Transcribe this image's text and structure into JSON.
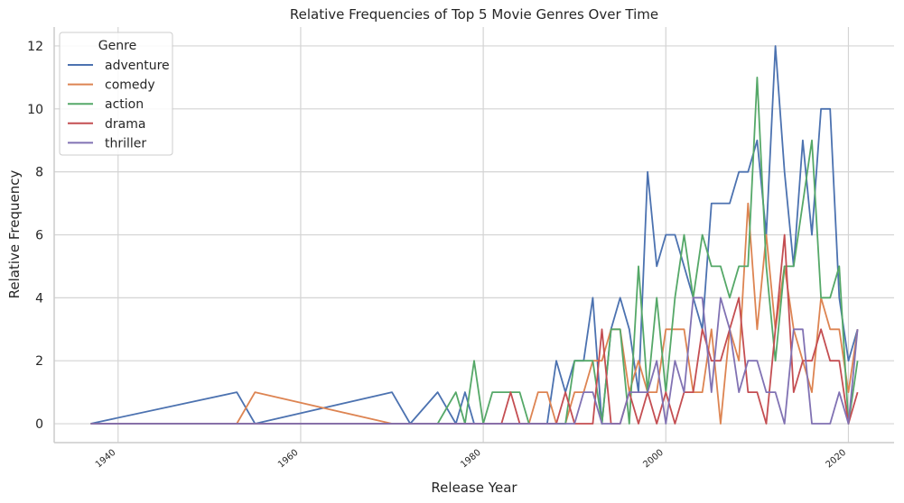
{
  "chart_data": {
    "type": "line",
    "title": "Relative Frequencies of Top 5 Movie Genres Over Time",
    "xlabel": "Release Year",
    "ylabel": "Relative Frequency",
    "xlim": [
      1933,
      2025
    ],
    "ylim": [
      -0.6,
      12.6
    ],
    "xticks": [
      1940,
      1960,
      1980,
      2000,
      2020
    ],
    "yticks": [
      0,
      2,
      4,
      6,
      8,
      10,
      12
    ],
    "grid": true,
    "legend": {
      "title": "Genre",
      "position": "top-left"
    },
    "x": [
      1937,
      1953,
      1955,
      1970,
      1972,
      1975,
      1977,
      1978,
      1979,
      1980,
      1981,
      1982,
      1983,
      1984,
      1985,
      1986,
      1987,
      1988,
      1989,
      1990,
      1991,
      1992,
      1993,
      1994,
      1995,
      1996,
      1997,
      1998,
      1999,
      2000,
      2001,
      2002,
      2003,
      2004,
      2005,
      2006,
      2007,
      2008,
      2009,
      2010,
      2011,
      2012,
      2013,
      2014,
      2015,
      2016,
      2017,
      2018,
      2019,
      2020,
      2021
    ],
    "series": [
      {
        "name": "adventure",
        "color": "#4c72b0",
        "values": [
          0,
          1,
          0,
          1,
          0,
          1,
          0,
          1,
          0,
          0,
          0,
          0,
          0,
          0,
          0,
          0,
          0,
          2,
          1,
          2,
          2,
          4,
          0,
          3,
          4,
          3,
          1,
          8,
          5,
          6,
          6,
          5,
          4,
          3,
          7,
          7,
          7,
          8,
          8,
          9,
          6,
          12,
          8,
          5,
          9,
          6,
          10,
          10,
          4,
          2,
          3
        ]
      },
      {
        "name": "comedy",
        "color": "#dd8452",
        "values": [
          0,
          0,
          1,
          0,
          0,
          0,
          0,
          0,
          0,
          0,
          0,
          0,
          0,
          0,
          0,
          1,
          1,
          0,
          0,
          1,
          1,
          2,
          2,
          3,
          3,
          1,
          2,
          1,
          1,
          3,
          3,
          3,
          1,
          1,
          3,
          0,
          3,
          2,
          7,
          3,
          6,
          3,
          5,
          3,
          2,
          1,
          4,
          3,
          3,
          1,
          3
        ]
      },
      {
        "name": "action",
        "color": "#55a868",
        "values": [
          0,
          0,
          0,
          0,
          0,
          0,
          1,
          0,
          2,
          0,
          1,
          1,
          1,
          1,
          0,
          0,
          0,
          0,
          0,
          2,
          2,
          2,
          0,
          3,
          3,
          0,
          5,
          1,
          4,
          1,
          4,
          6,
          4,
          6,
          5,
          5,
          4,
          5,
          5,
          11,
          5,
          2,
          5,
          5,
          7,
          9,
          4,
          4,
          5,
          0,
          2
        ]
      },
      {
        "name": "drama",
        "color": "#c44e52",
        "values": [
          0,
          0,
          0,
          0,
          0,
          0,
          0,
          0,
          0,
          0,
          0,
          0,
          1,
          0,
          0,
          0,
          0,
          0,
          1,
          0,
          0,
          0,
          3,
          0,
          0,
          1,
          0,
          1,
          0,
          1,
          0,
          1,
          1,
          3,
          2,
          2,
          3,
          4,
          1,
          1,
          0,
          3,
          6,
          1,
          2,
          2,
          3,
          2,
          2,
          0,
          1
        ]
      },
      {
        "name": "thriller",
        "color": "#8172b3",
        "values": [
          0,
          0,
          0,
          0,
          0,
          0,
          0,
          0,
          0,
          0,
          0,
          0,
          0,
          0,
          0,
          0,
          0,
          0,
          0,
          0,
          1,
          1,
          0,
          0,
          0,
          1,
          1,
          1,
          2,
          0,
          2,
          1,
          4,
          4,
          1,
          4,
          3,
          1,
          2,
          2,
          1,
          1,
          0,
          3,
          3,
          0,
          0,
          0,
          1,
          0,
          3
        ]
      }
    ]
  }
}
